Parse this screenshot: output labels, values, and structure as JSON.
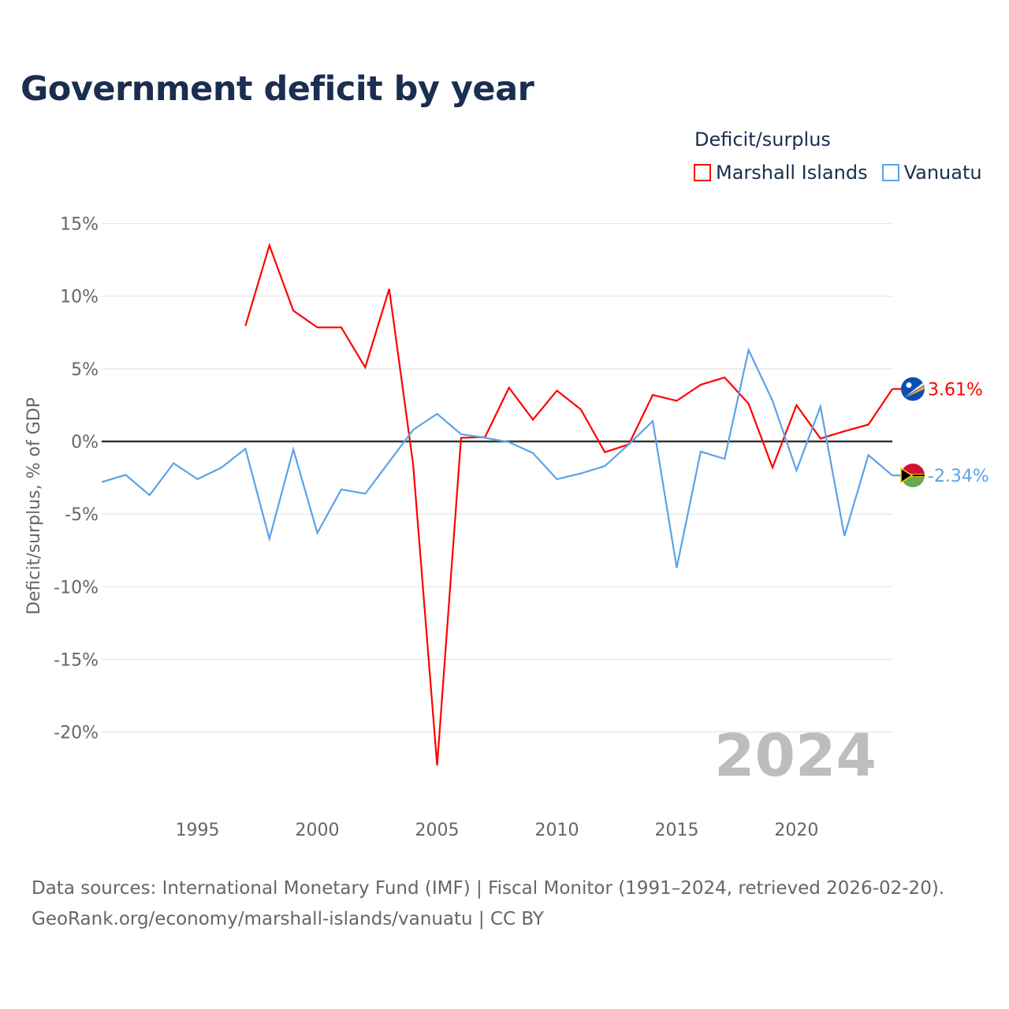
{
  "chart_data": {
    "type": "line",
    "title": "Government deficit by year",
    "ylabel": "Deficit/surplus, % of GDP",
    "xlabel": "",
    "ylim": [
      -22.5,
      15
    ],
    "xlim": [
      1991,
      2024
    ],
    "yticks": [
      15,
      10,
      5,
      0,
      -5,
      -10,
      -15,
      -20
    ],
    "ytick_labels": [
      "15%",
      "10%",
      "5%",
      "0%",
      "-5%",
      "-10%",
      "-15%",
      "-20%"
    ],
    "xticks": [
      1995,
      2000,
      2005,
      2010,
      2015,
      2020
    ],
    "xtick_labels": [
      "1995",
      "2000",
      "2005",
      "2010",
      "2015",
      "2020"
    ],
    "grid": true,
    "legend_title": "Deficit/surplus",
    "legend_position": "top-right",
    "year_watermark": "2024",
    "series": [
      {
        "name": "Marshall Islands",
        "color": "#ff0000",
        "flag": "marshall-islands-flag",
        "end_label": "3.61%",
        "x": [
          1997,
          1998,
          1999,
          2000,
          2001,
          2002,
          2003,
          2004,
          2005,
          2006,
          2007,
          2008,
          2009,
          2010,
          2011,
          2012,
          2013,
          2014,
          2015,
          2016,
          2017,
          2018,
          2019,
          2020,
          2021,
          2022,
          2023,
          2024
        ],
        "values": [
          7.95,
          13.5,
          9.0,
          7.85,
          7.85,
          5.1,
          10.5,
          -1.6,
          -22.3,
          0.25,
          0.3,
          3.7,
          1.5,
          3.5,
          2.2,
          -0.74,
          -0.2,
          3.2,
          2.8,
          3.9,
          4.4,
          2.6,
          -1.8,
          2.5,
          0.2,
          0.7,
          1.16,
          3.61
        ]
      },
      {
        "name": "Vanuatu",
        "color": "#5ba3e8",
        "flag": "vanuatu-flag",
        "end_label": "-2.34%",
        "x": [
          1991,
          1992,
          1993,
          1994,
          1995,
          1996,
          1997,
          1998,
          1999,
          2000,
          2001,
          2002,
          2003,
          2004,
          2005,
          2006,
          2007,
          2008,
          2009,
          2010,
          2011,
          2012,
          2013,
          2014,
          2015,
          2016,
          2017,
          2018,
          2019,
          2020,
          2021,
          2022,
          2023,
          2024
        ],
        "values": [
          -2.8,
          -2.3,
          -3.7,
          -1.5,
          -2.6,
          -1.8,
          -0.5,
          -6.7,
          -0.55,
          -6.3,
          -3.3,
          -3.6,
          -1.4,
          0.8,
          1.9,
          0.5,
          0.25,
          -0.05,
          -0.8,
          -2.6,
          -2.2,
          -1.7,
          -0.2,
          1.4,
          -8.7,
          -0.7,
          -1.2,
          6.3,
          2.8,
          -2.0,
          2.4,
          -6.5,
          -0.94,
          -2.34
        ]
      }
    ]
  },
  "footer": {
    "source_line": "Data sources: International Monetary Fund (IMF) | Fiscal Monitor (1991–2024, retrieved 2026-02-20).",
    "credit_line": "GeoRank.org/economy/marshall-islands/vanuatu | CC BY"
  }
}
